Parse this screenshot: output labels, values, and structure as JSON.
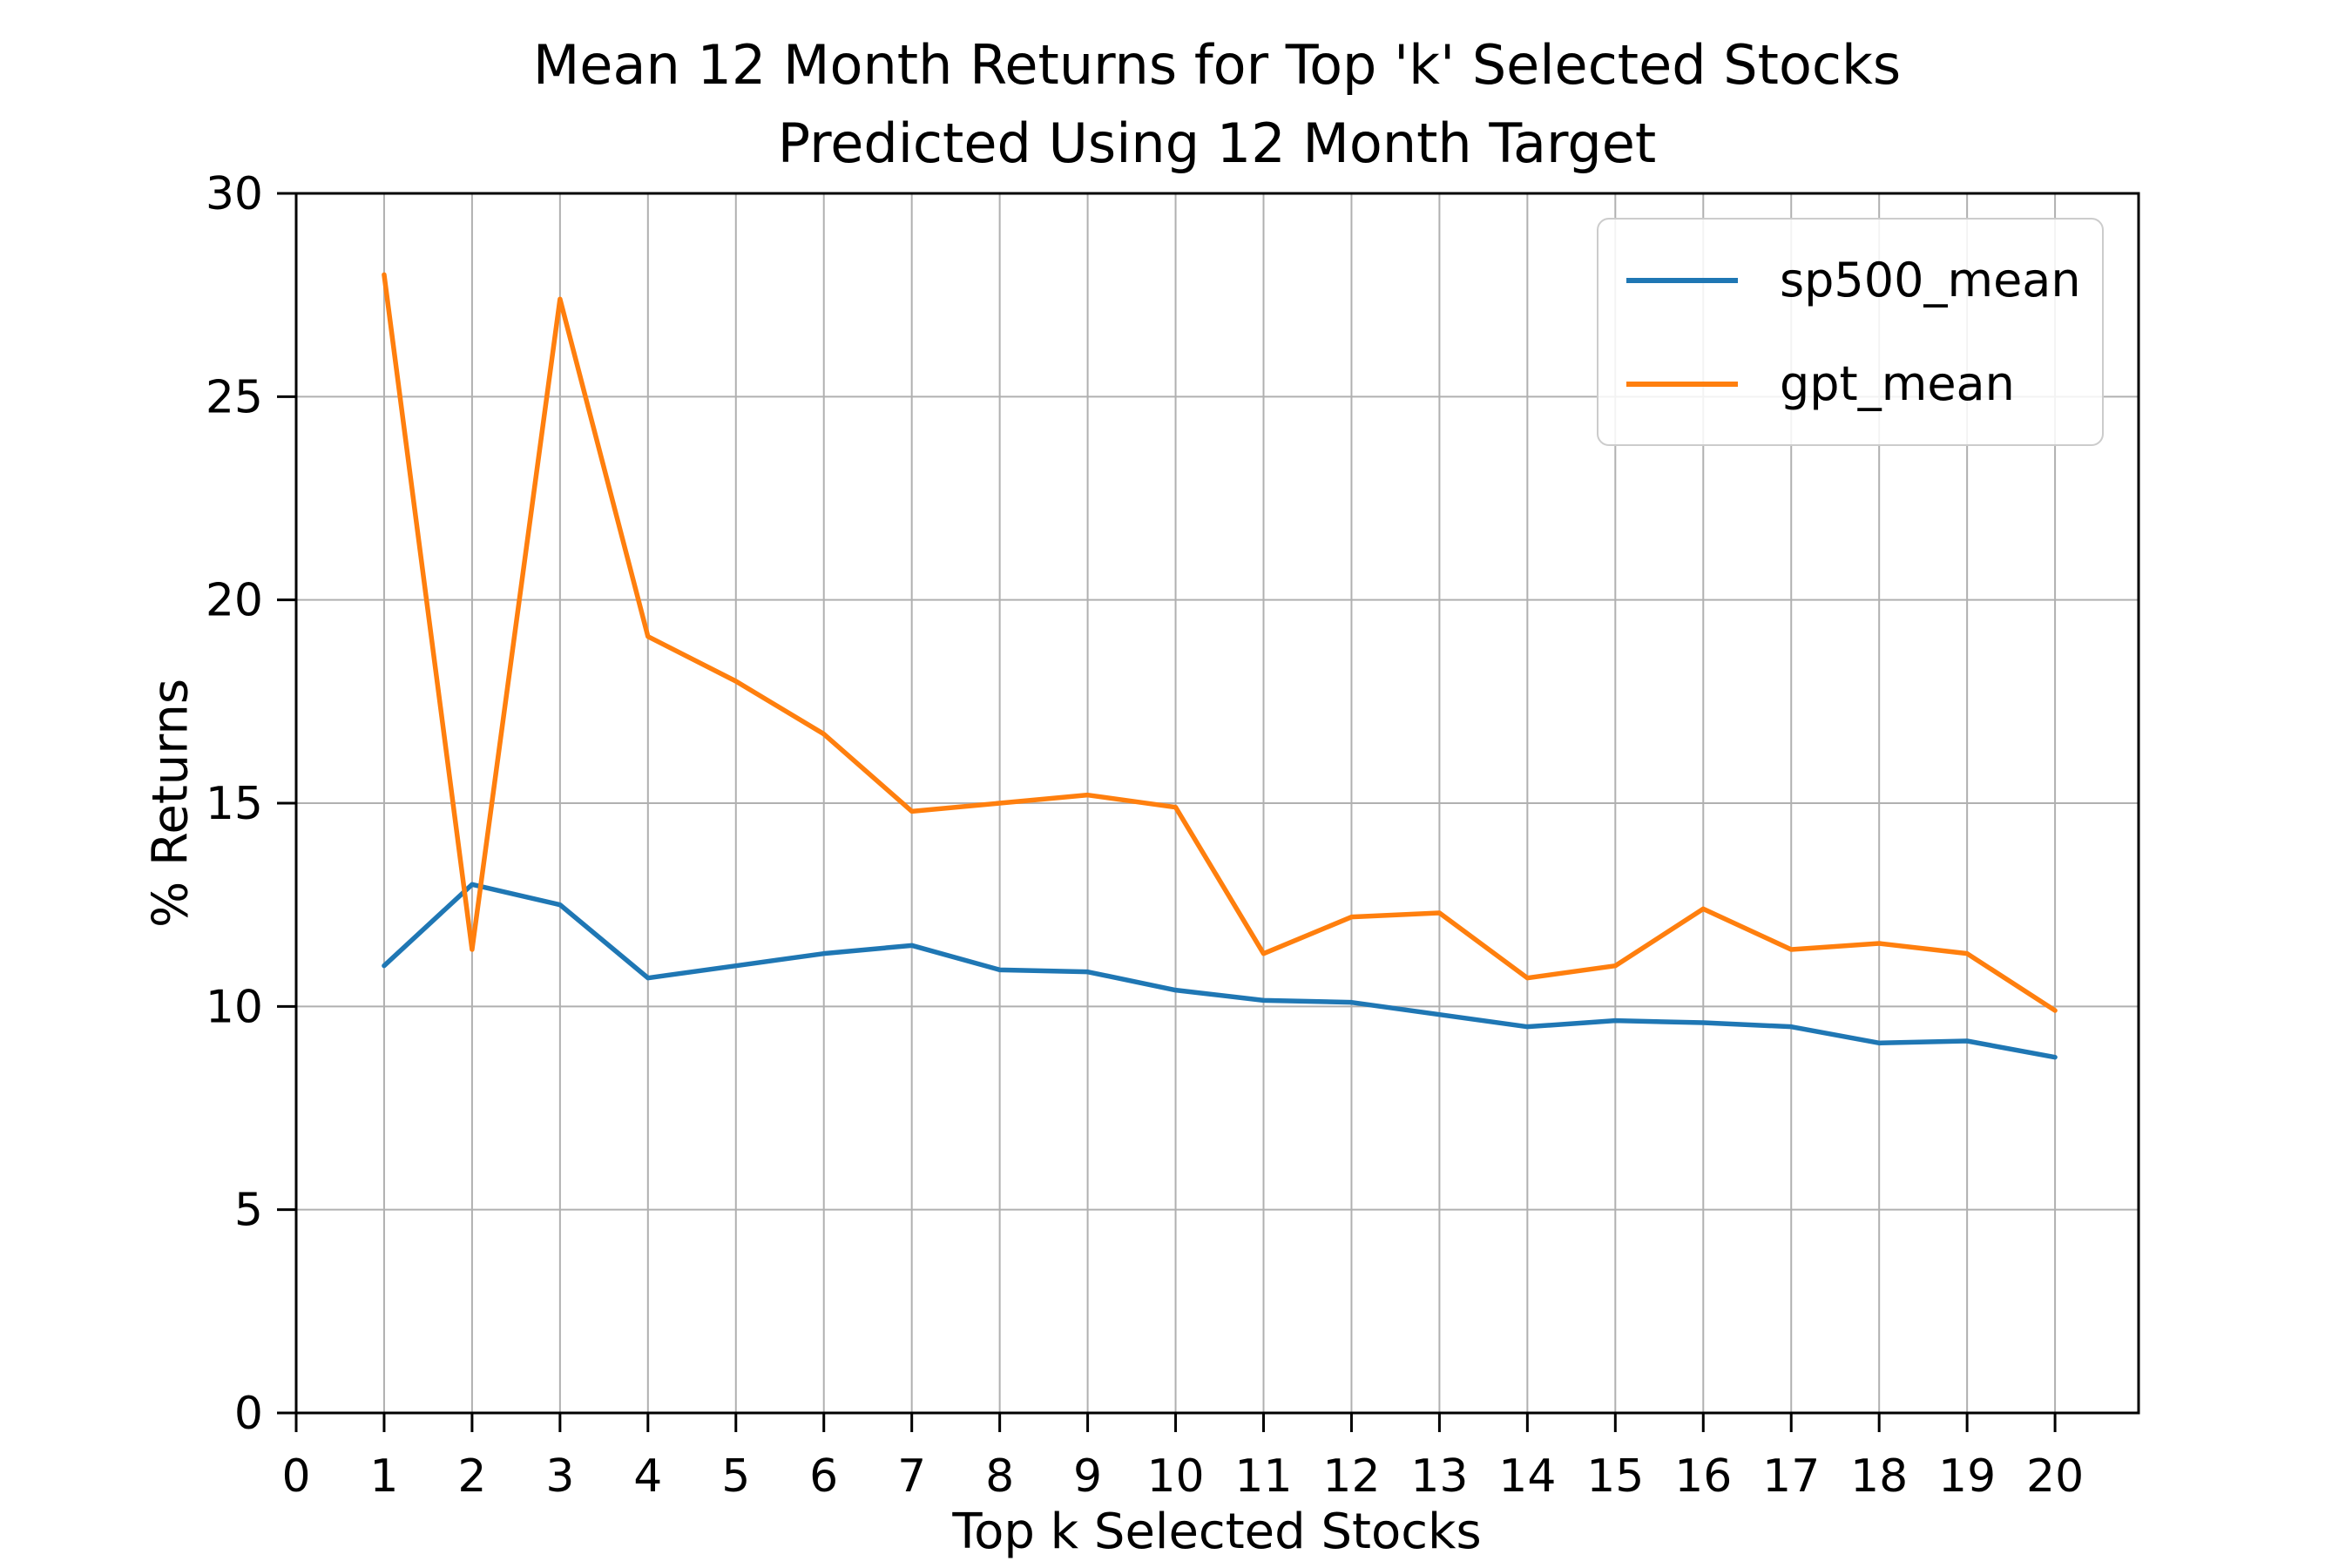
{
  "figure": {
    "background": "#ffffff"
  },
  "chart_data": {
    "type": "line",
    "title": "Mean 12 Month Returns for Top 'k' Selected Stocks\nPredicted Using 12 Month Target",
    "xlabel": "Top k Selected Stocks",
    "ylabel": "% Returns",
    "x": [
      1,
      2,
      3,
      4,
      5,
      6,
      7,
      8,
      9,
      10,
      11,
      12,
      13,
      14,
      15,
      16,
      17,
      18,
      19,
      20
    ],
    "series": [
      {
        "name": "sp500_mean",
        "color": "#1f77b4",
        "values": [
          11.0,
          13.0,
          12.5,
          10.7,
          11.0,
          11.3,
          11.5,
          10.9,
          10.85,
          10.4,
          10.15,
          10.1,
          9.8,
          9.5,
          9.65,
          9.6,
          9.5,
          9.1,
          9.15,
          8.75
        ]
      },
      {
        "name": "gpt_mean",
        "color": "#ff7f0e",
        "values": [
          28.0,
          11.4,
          27.4,
          19.1,
          18.0,
          16.7,
          14.8,
          15.0,
          15.2,
          14.9,
          11.3,
          12.2,
          12.3,
          10.7,
          11.0,
          12.4,
          11.4,
          11.55,
          11.3,
          9.9
        ]
      }
    ],
    "xlim": [
      0,
      20.95
    ],
    "ylim": [
      0,
      30
    ],
    "x_ticks": [
      0,
      1,
      2,
      3,
      4,
      5,
      6,
      7,
      8,
      9,
      10,
      11,
      12,
      13,
      14,
      15,
      16,
      17,
      18,
      19,
      20
    ],
    "y_ticks": [
      0,
      5,
      10,
      15,
      20,
      25,
      30
    ],
    "grid": true,
    "grid_color": "#b0b0b0",
    "axis_color": "#000000",
    "legend": {
      "position": "upper right",
      "entries": [
        "sp500_mean",
        "gpt_mean"
      ]
    }
  }
}
